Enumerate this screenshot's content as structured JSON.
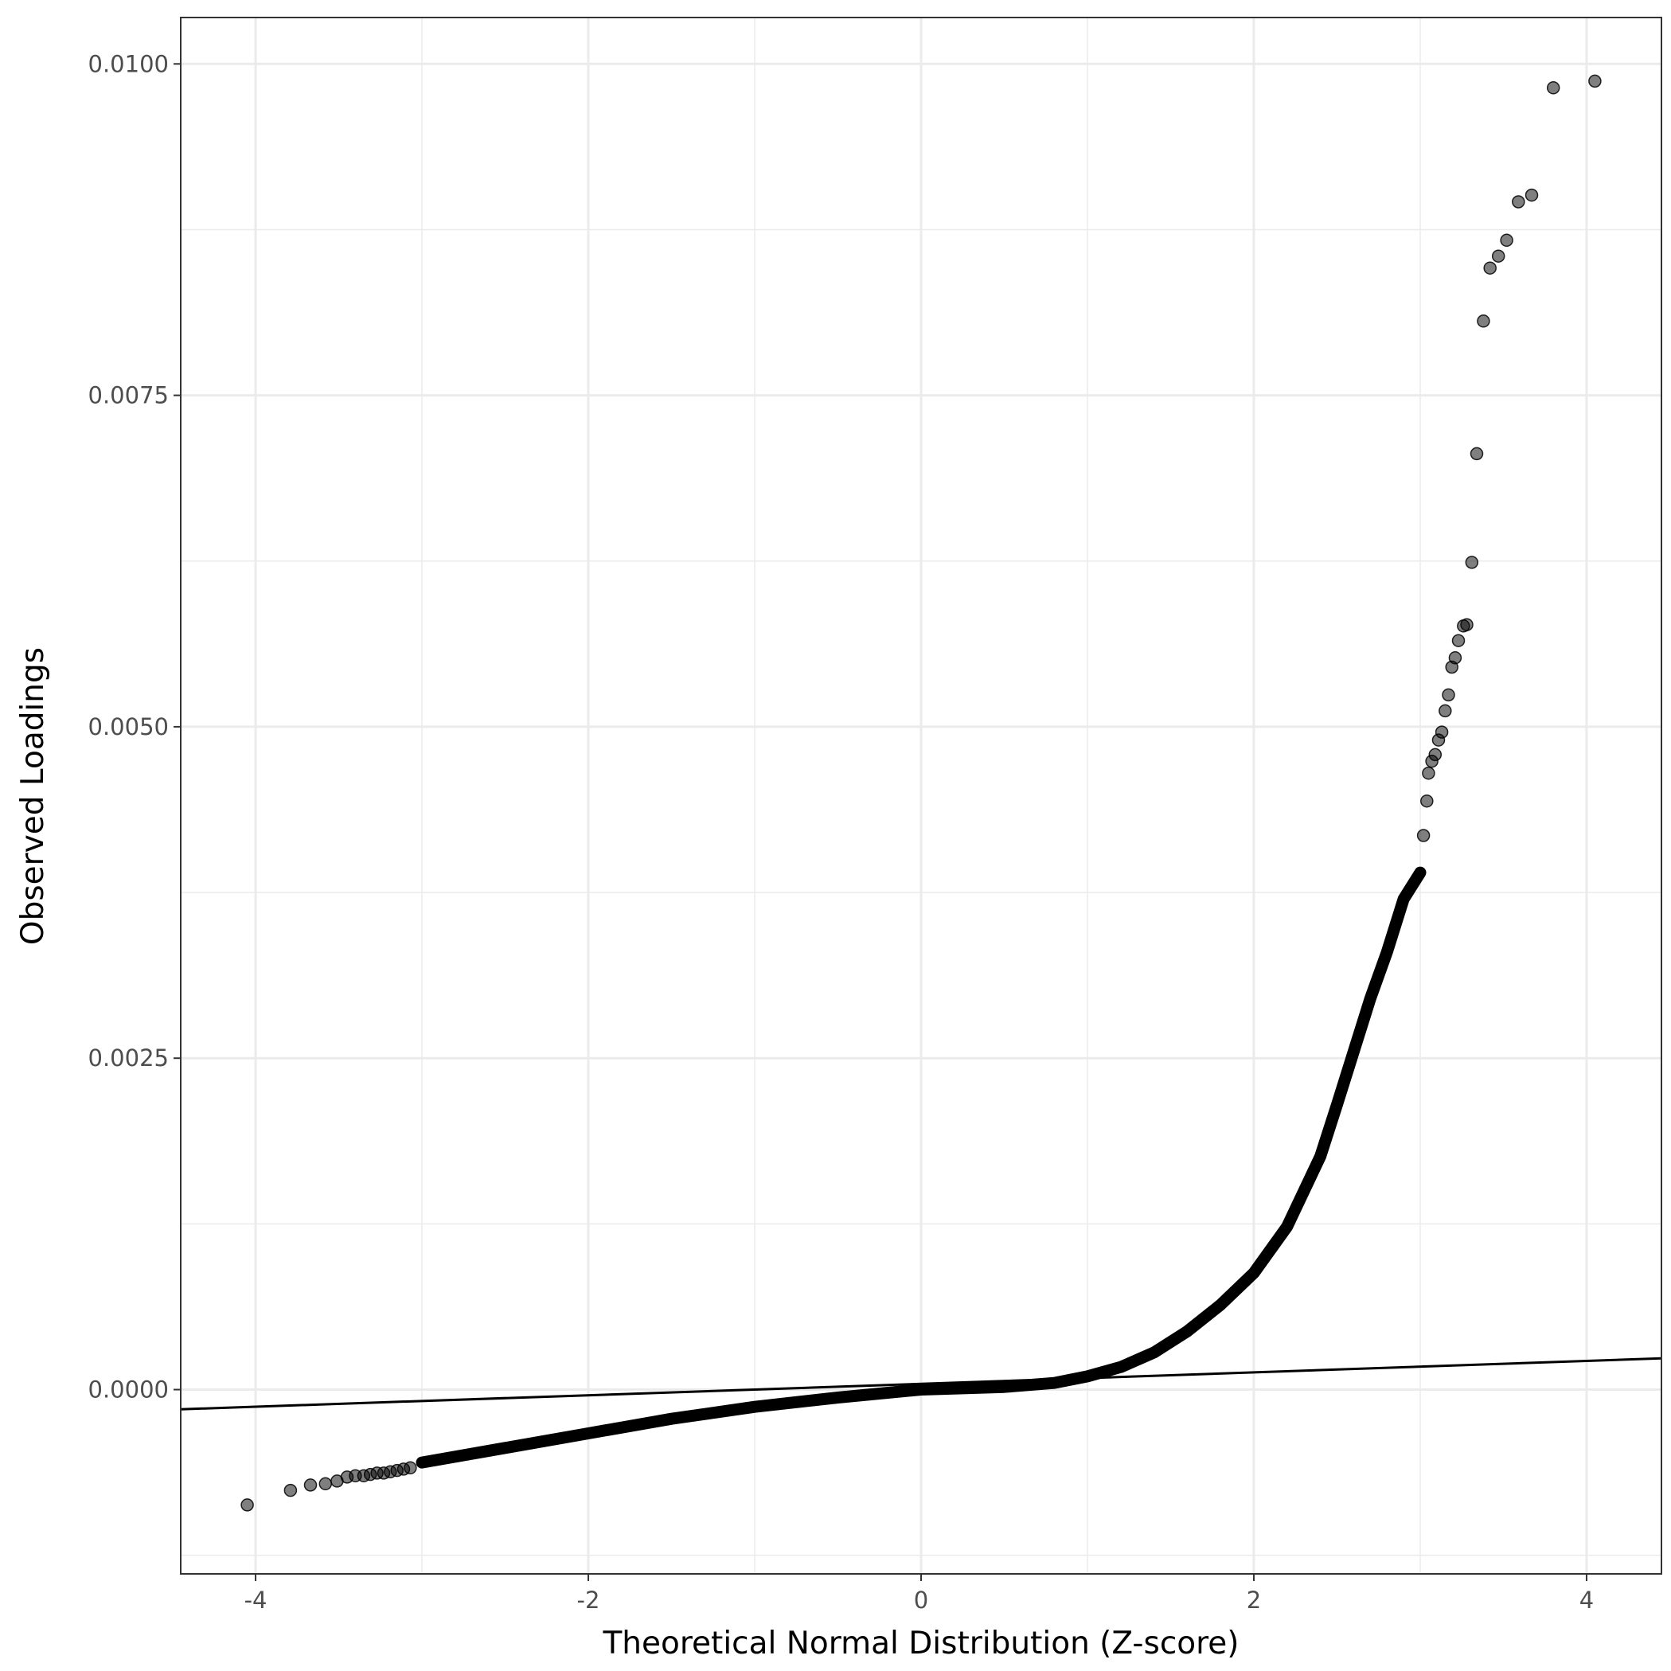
{
  "chart_data": {
    "type": "scatter",
    "xlabel": "Theoretical Normal Distribution (Z-score)",
    "ylabel": "Observed Loadings",
    "xlim": [
      -4.45,
      4.45
    ],
    "ylim": [
      -0.00139,
      0.01035
    ],
    "x_ticks": [
      -4,
      -2,
      0,
      2,
      4
    ],
    "x_tick_labels": [
      "-4",
      "-2",
      "0",
      "2",
      "4"
    ],
    "y_ticks": [
      0.0,
      0.0025,
      0.005,
      0.0075,
      0.01
    ],
    "y_tick_labels": [
      "0.0000",
      "0.0025",
      "0.0050",
      "0.0075",
      "0.0100"
    ],
    "grid": true,
    "legend": "none",
    "colors": {
      "points": "#000000",
      "points_alpha": 0.5,
      "line": "#000000",
      "grid": "#ebebeb",
      "panel_border": "#333333"
    },
    "reference_line": {
      "intercept": 4.37e-05,
      "slope": 4.32e-05
    },
    "curve_points": [
      [
        -3.0,
        -0.00055
      ],
      [
        -2.5,
        -0.00044
      ],
      [
        -2.0,
        -0.00033
      ],
      [
        -1.5,
        -0.00022
      ],
      [
        -1.0,
        -0.00013
      ],
      [
        -0.5,
        -6e-05
      ],
      [
        0.0,
        0.0
      ],
      [
        0.5,
        2e-05
      ],
      [
        0.8,
        5e-05
      ],
      [
        1.0,
        0.0001
      ],
      [
        1.2,
        0.00017
      ],
      [
        1.4,
        0.00028
      ],
      [
        1.6,
        0.00044
      ],
      [
        1.8,
        0.00064
      ],
      [
        2.0,
        0.00088
      ],
      [
        2.2,
        0.00123
      ],
      [
        2.4,
        0.00176
      ],
      [
        2.5,
        0.00215
      ],
      [
        2.6,
        0.00255
      ],
      [
        2.7,
        0.00295
      ],
      [
        2.8,
        0.0033
      ],
      [
        2.9,
        0.0037
      ],
      [
        3.0,
        0.0039
      ]
    ],
    "points": [
      [
        -4.05,
        -0.00087
      ],
      [
        -3.79,
        -0.00076
      ],
      [
        -3.67,
        -0.00072
      ],
      [
        -3.58,
        -0.00071
      ],
      [
        -3.51,
        -0.00069
      ],
      [
        -3.45,
        -0.00066
      ],
      [
        -3.4,
        -0.00065
      ],
      [
        -3.35,
        -0.00065
      ],
      [
        -3.31,
        -0.00064
      ],
      [
        -3.27,
        -0.00063
      ],
      [
        -3.23,
        -0.00063
      ],
      [
        -3.19,
        -0.00062
      ],
      [
        -3.15,
        -0.00061
      ],
      [
        -3.11,
        -0.0006
      ],
      [
        -3.07,
        -0.00059
      ],
      [
        3.02,
        0.00418
      ],
      [
        3.04,
        0.00444
      ],
      [
        3.05,
        0.00465
      ],
      [
        3.07,
        0.00474
      ],
      [
        3.09,
        0.00479
      ],
      [
        3.11,
        0.0049
      ],
      [
        3.13,
        0.00496
      ],
      [
        3.15,
        0.00512
      ],
      [
        3.17,
        0.00524
      ],
      [
        3.19,
        0.00545
      ],
      [
        3.21,
        0.00552
      ],
      [
        3.23,
        0.00565
      ],
      [
        3.26,
        0.00576
      ],
      [
        3.28,
        0.00577
      ],
      [
        3.31,
        0.00624
      ],
      [
        3.34,
        0.00706
      ],
      [
        3.38,
        0.00806
      ],
      [
        3.42,
        0.00846
      ],
      [
        3.47,
        0.00855
      ],
      [
        3.52,
        0.00867
      ],
      [
        3.59,
        0.00896
      ],
      [
        3.67,
        0.00901
      ],
      [
        3.8,
        0.00982
      ],
      [
        4.05,
        0.00987
      ]
    ]
  }
}
